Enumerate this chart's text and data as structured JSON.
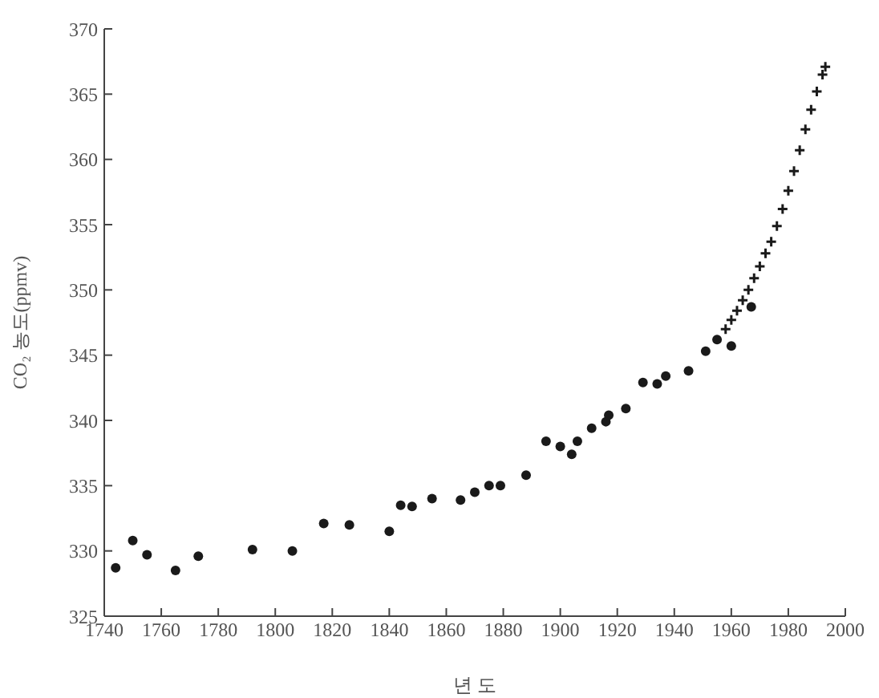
{
  "chart_data": {
    "type": "scatter",
    "xlabel": "년 도",
    "ylabel": "CO₂ 농도(ppmv)",
    "xlim": [
      1740,
      2000
    ],
    "xticks": [
      1740,
      1760,
      1780,
      1800,
      1820,
      1840,
      1860,
      1880,
      1900,
      1920,
      1940,
      1960,
      1980,
      2000
    ],
    "ylim": [
      325,
      370
    ],
    "yticks": [
      325,
      330,
      335,
      340,
      345,
      350,
      355,
      360,
      365,
      370
    ],
    "grid": false,
    "legend": false,
    "series": [
      {
        "color": "#1a1a1a",
        "marker": "circle",
        "x": [
          1744,
          1750,
          1755,
          1765,
          1773,
          1792,
          1806,
          1817,
          1826,
          1840,
          1844,
          1848,
          1855,
          1865,
          1870,
          1875,
          1879,
          1888,
          1895,
          1900,
          1904,
          1906,
          1911,
          1916,
          1917,
          1923,
          1929,
          1934,
          1937,
          1945,
          1951,
          1955,
          1960,
          1967
        ],
        "values": [
          328.7,
          330.8,
          329.7,
          328.5,
          329.6,
          330.1,
          330.0,
          332.1,
          332.0,
          331.5,
          333.5,
          333.4,
          334.0,
          333.9,
          334.5,
          335.0,
          335.0,
          335.8,
          338.4,
          338.0,
          337.4,
          338.4,
          339.4,
          339.9,
          340.4,
          340.9,
          342.9,
          342.8,
          343.4,
          343.8,
          345.3,
          346.2,
          345.7,
          348.7
        ]
      },
      {
        "color": "#1a1a1a",
        "marker": "cross",
        "x": [
          1958,
          1960,
          1962,
          1964,
          1966,
          1968,
          1970,
          1972,
          1974,
          1976,
          1978,
          1980,
          1982,
          1984,
          1986,
          1988,
          1990,
          1992,
          1993
        ],
        "values": [
          347.0,
          347.7,
          348.4,
          349.2,
          350.0,
          350.9,
          351.8,
          352.8,
          353.7,
          354.9,
          356.2,
          357.6,
          359.1,
          360.7,
          362.3,
          363.8,
          365.2,
          366.5,
          367.1
        ]
      }
    ]
  }
}
